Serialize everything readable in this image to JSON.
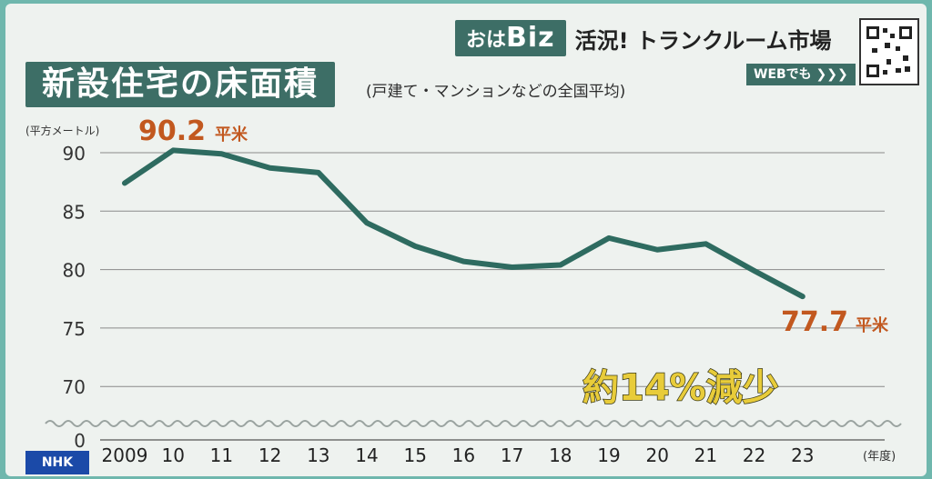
{
  "header": {
    "logo_small": "おは",
    "logo_big": "Biz",
    "program_title": "活況! トランクルーム市場",
    "web_button": "WEBでも ❯❯❯"
  },
  "broadcaster": "NHK",
  "colors": {
    "accent": "#3d6e66",
    "line": "#2e6b60",
    "highlight": "#c2581f",
    "callout": "#e8cc3a"
  },
  "chart_data": {
    "type": "line",
    "title": "新設住宅の床面積",
    "subtitle": "(戸建て・マンションなどの全国平均)",
    "ylabel": "(平方メートル)",
    "xlabel": "(年度)",
    "categories": [
      "2009",
      "10",
      "11",
      "12",
      "13",
      "14",
      "15",
      "16",
      "17",
      "18",
      "19",
      "20",
      "21",
      "22",
      "23"
    ],
    "values": [
      87.4,
      90.2,
      89.9,
      88.7,
      88.3,
      84.0,
      82.0,
      80.7,
      80.2,
      80.4,
      82.7,
      81.7,
      82.2,
      79.9,
      77.7
    ],
    "yticks": [
      0,
      70,
      75,
      80,
      85,
      90
    ],
    "ylim": [
      70,
      90
    ],
    "axis_break": true,
    "grid": true,
    "annotations": {
      "max_value": "90.2",
      "min_value": "77.7",
      "unit": "平米",
      "callout": "約14%減少"
    }
  }
}
